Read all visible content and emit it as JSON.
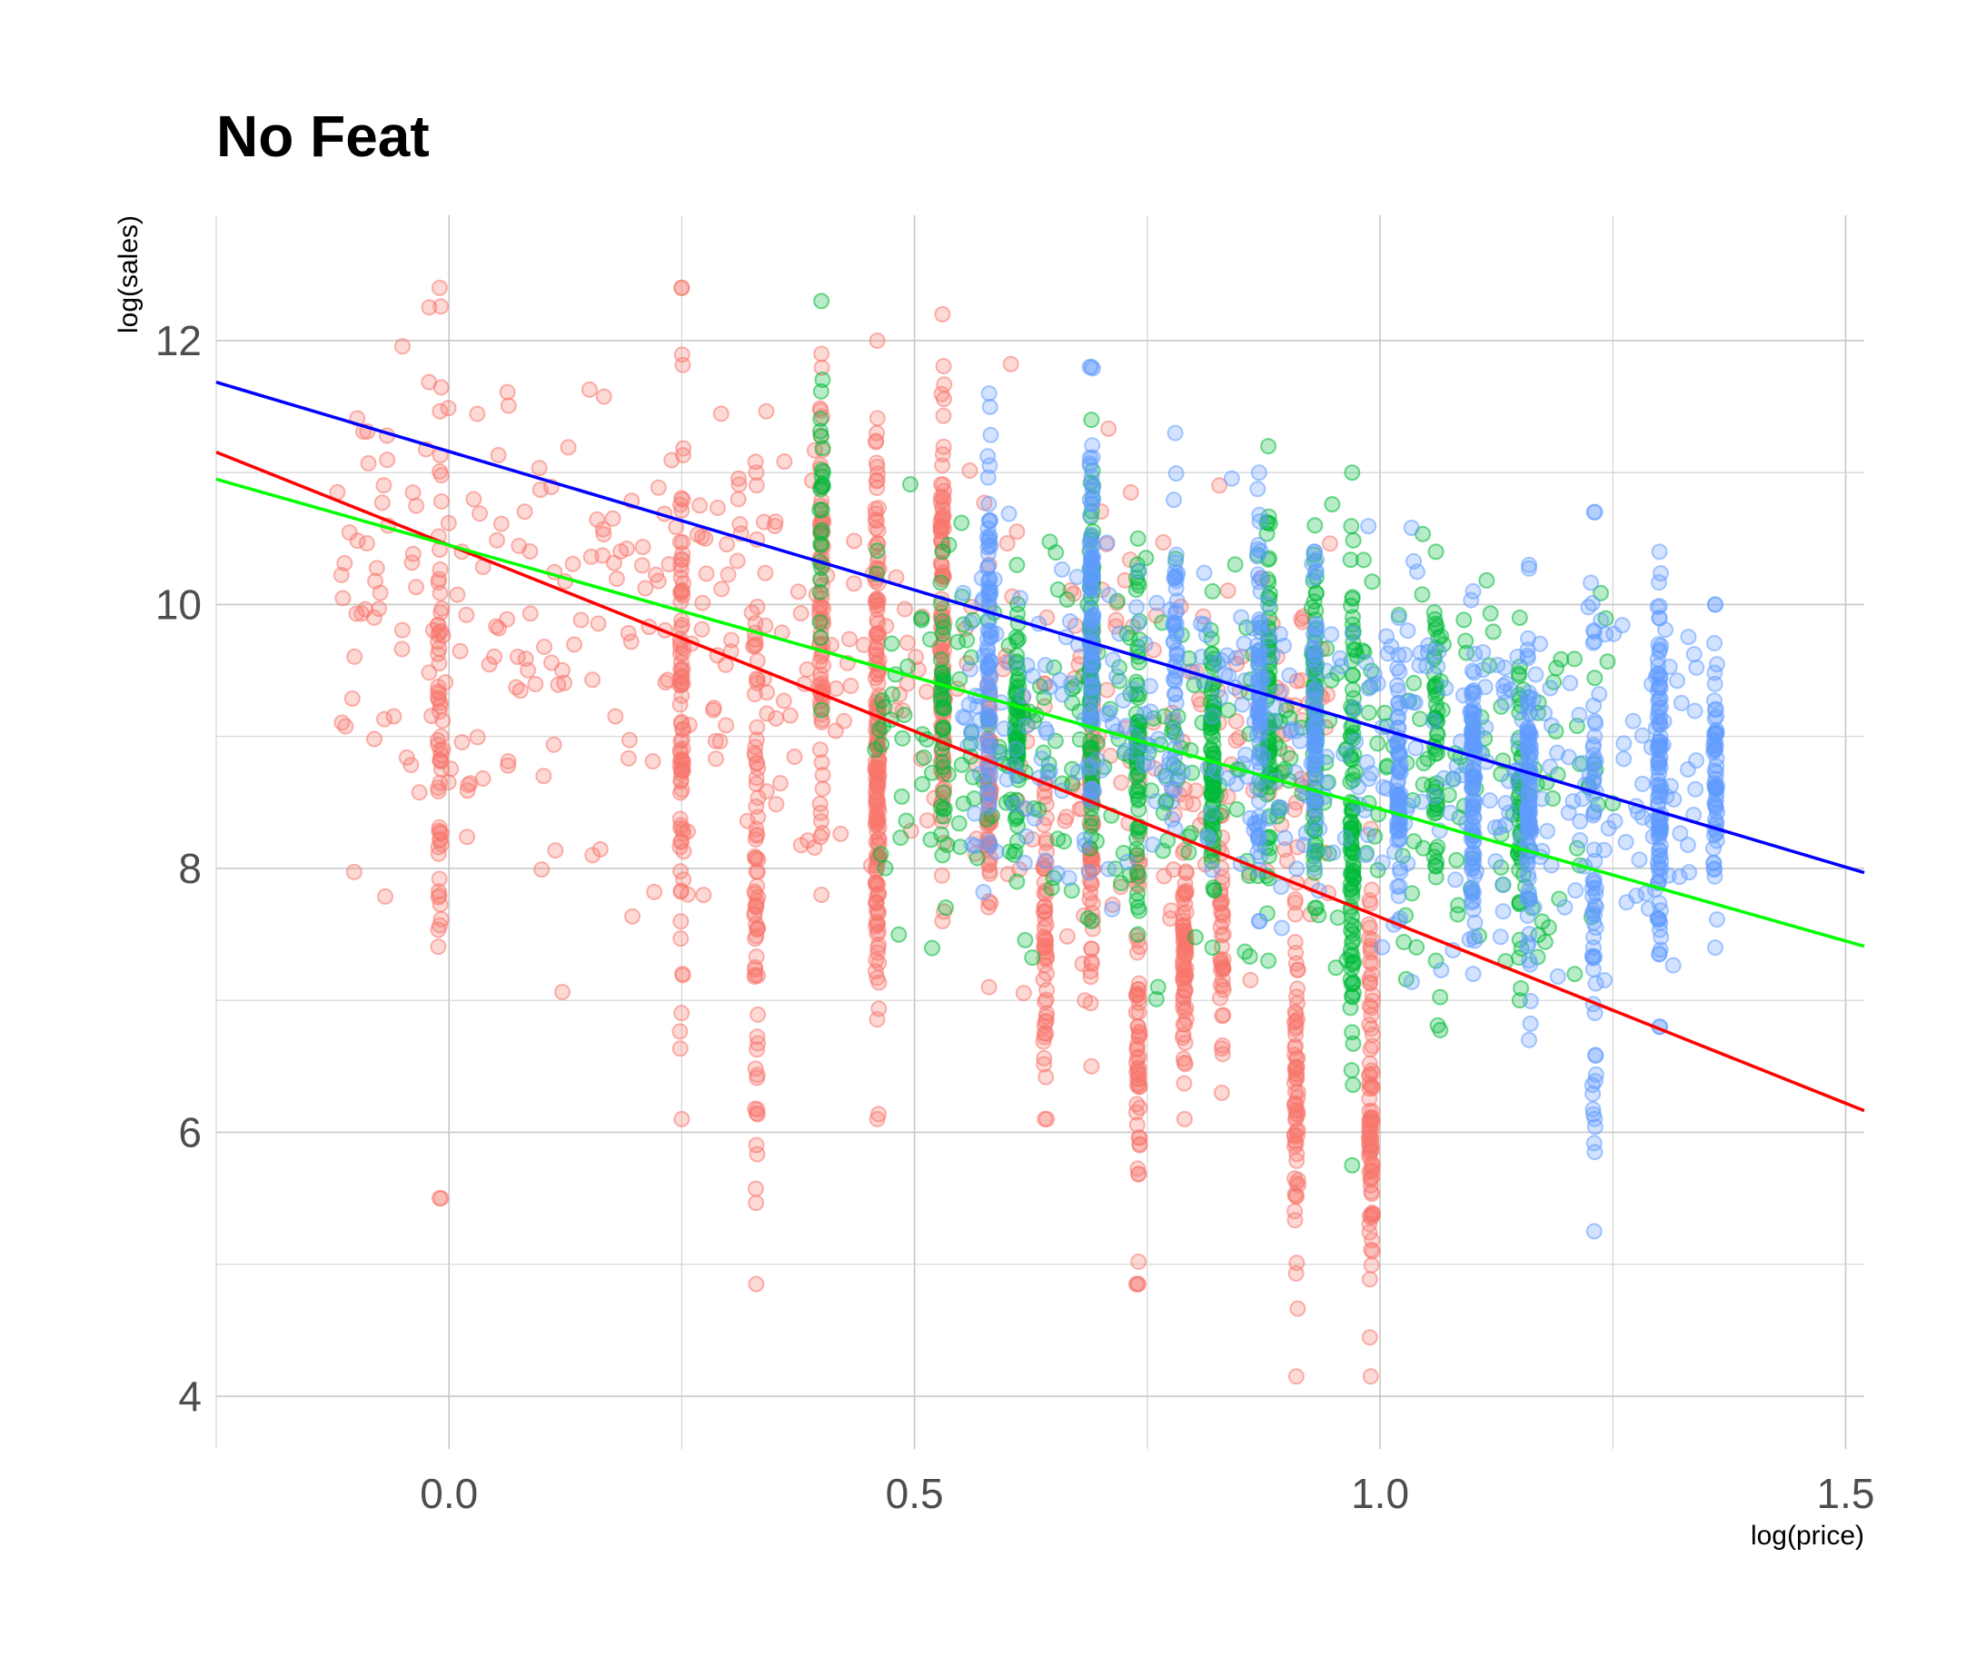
{
  "chart_data": {
    "type": "scatter",
    "title": "No Feat",
    "xlabel": "log(price)",
    "ylabel": "log(sales)",
    "xlim": [
      -0.25,
      1.52
    ],
    "ylim": [
      3.6,
      12.95
    ],
    "x_ticks": [
      0.0,
      0.5,
      1.0,
      1.5
    ],
    "x_tick_labels": [
      "0.0",
      "0.5",
      "1.0",
      "1.5"
    ],
    "y_ticks": [
      4,
      6,
      8,
      10,
      12
    ],
    "y_tick_labels": [
      "4",
      "6",
      "8",
      "10",
      "12"
    ],
    "grid": true,
    "legend": "none",
    "series": [
      {
        "color": "#f8766d",
        "line_color": "#ff0000",
        "fit": {
          "intercept": 10.45,
          "slope": -2.82
        },
        "columns": [
          {
            "x": -0.01,
            "ymin": 5.5,
            "ymax": 12.4,
            "n": 60
          },
          {
            "x": 0.25,
            "ymin": 6.1,
            "ymax": 12.4,
            "n": 90
          },
          {
            "x": 0.33,
            "ymin": 4.85,
            "ymax": 11.0,
            "n": 70
          },
          {
            "x": 0.4,
            "ymin": 7.8,
            "ymax": 11.9,
            "n": 80
          },
          {
            "x": 0.46,
            "ymin": 6.1,
            "ymax": 12.0,
            "n": 170
          },
          {
            "x": 0.53,
            "ymin": 7.6,
            "ymax": 12.2,
            "n": 110
          },
          {
            "x": 0.58,
            "ymin": 7.1,
            "ymax": 10.3,
            "n": 60
          },
          {
            "x": 0.64,
            "ymin": 6.1,
            "ymax": 9.4,
            "n": 60
          },
          {
            "x": 0.69,
            "ymin": 6.5,
            "ymax": 9.8,
            "n": 60
          },
          {
            "x": 0.74,
            "ymin": 4.85,
            "ymax": 8.7,
            "n": 60
          },
          {
            "x": 0.79,
            "ymin": 6.1,
            "ymax": 8.6,
            "n": 70
          },
          {
            "x": 0.83,
            "ymin": 6.3,
            "ymax": 8.4,
            "n": 40
          },
          {
            "x": 0.91,
            "ymin": 4.15,
            "ymax": 8.5,
            "n": 70
          },
          {
            "x": 0.99,
            "ymin": 4.15,
            "ymax": 8.3,
            "n": 90
          }
        ],
        "scatter": {
          "xmin": -0.12,
          "xmax": 0.95,
          "ycenter": 9.5,
          "spread": 0.9,
          "n": 420
        }
      },
      {
        "color": "#00ba38",
        "line_color": "#00ff00",
        "fit": {
          "intercept": 10.45,
          "slope": -2.0
        },
        "columns": [
          {
            "x": 0.4,
            "ymin": 9.2,
            "ymax": 12.3,
            "n": 25
          },
          {
            "x": 0.53,
            "ymin": 8.1,
            "ymax": 10.4,
            "n": 30
          },
          {
            "x": 0.61,
            "ymin": 7.9,
            "ymax": 10.3,
            "n": 60
          },
          {
            "x": 0.69,
            "ymin": 7.6,
            "ymax": 11.4,
            "n": 80
          },
          {
            "x": 0.74,
            "ymin": 7.5,
            "ymax": 10.5,
            "n": 60
          },
          {
            "x": 0.82,
            "ymin": 7.4,
            "ymax": 10.1,
            "n": 70
          },
          {
            "x": 0.88,
            "ymin": 7.3,
            "ymax": 11.2,
            "n": 70
          },
          {
            "x": 0.93,
            "ymin": 7.7,
            "ymax": 10.6,
            "n": 70
          },
          {
            "x": 0.97,
            "ymin": 5.75,
            "ymax": 11.0,
            "n": 100
          },
          {
            "x": 1.06,
            "ymin": 7.3,
            "ymax": 10.4,
            "n": 40
          },
          {
            "x": 1.15,
            "ymin": 7.0,
            "ymax": 9.9,
            "n": 40
          }
        ],
        "scatter": {
          "xmin": 0.45,
          "xmax": 1.25,
          "ycenter": 8.9,
          "spread": 0.75,
          "n": 380
        }
      },
      {
        "color": "#619cff",
        "line_color": "#0000ff",
        "fit": {
          "intercept": 11.16,
          "slope": -2.1
        },
        "columns": [
          {
            "x": 0.58,
            "ymin": 8.2,
            "ymax": 11.6,
            "n": 70
          },
          {
            "x": 0.69,
            "ymin": 8.6,
            "ymax": 11.8,
            "n": 80
          },
          {
            "x": 0.78,
            "ymin": 8.3,
            "ymax": 11.3,
            "n": 40
          },
          {
            "x": 0.87,
            "ymin": 7.6,
            "ymax": 11.0,
            "n": 70
          },
          {
            "x": 0.93,
            "ymin": 8.0,
            "ymax": 10.4,
            "n": 50
          },
          {
            "x": 1.02,
            "ymin": 7.6,
            "ymax": 9.9,
            "n": 60
          },
          {
            "x": 1.1,
            "ymin": 7.2,
            "ymax": 10.1,
            "n": 90
          },
          {
            "x": 1.16,
            "ymin": 6.7,
            "ymax": 10.3,
            "n": 90
          },
          {
            "x": 1.23,
            "ymin": 5.25,
            "ymax": 10.7,
            "n": 60
          },
          {
            "x": 1.3,
            "ymin": 6.8,
            "ymax": 10.4,
            "n": 100
          },
          {
            "x": 1.36,
            "ymin": 7.4,
            "ymax": 10.0,
            "n": 60
          }
        ],
        "scatter": {
          "xmin": 0.55,
          "xmax": 1.34,
          "ycenter": 8.85,
          "spread": 0.7,
          "n": 420
        }
      }
    ]
  }
}
